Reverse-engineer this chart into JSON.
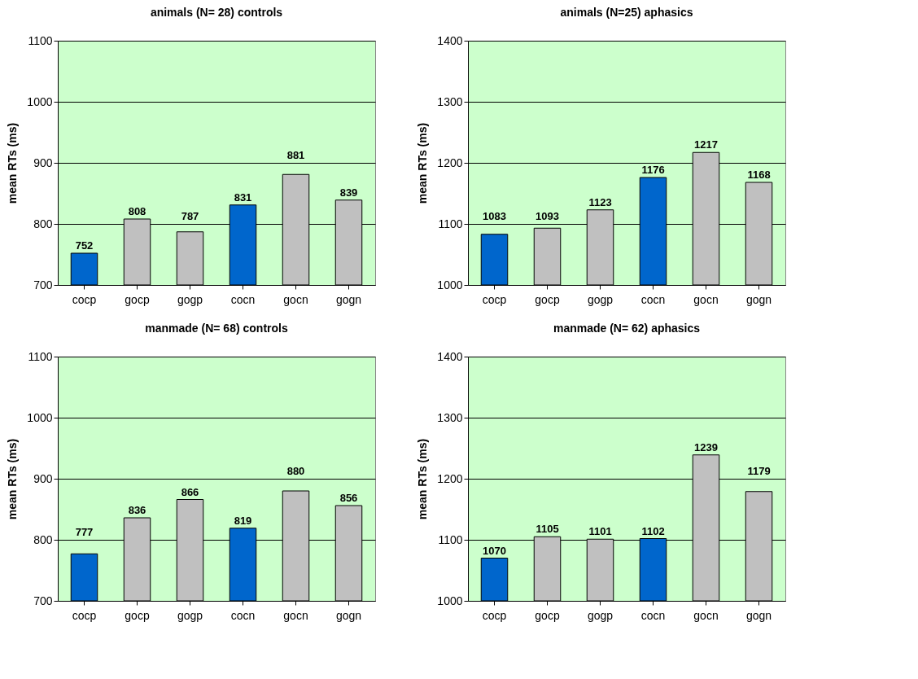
{
  "chart_data": [
    {
      "type": "bar",
      "title": "animals (N= 28) controls",
      "ylabel": "mean RTs (ms)",
      "categories": [
        "cocp",
        "gocp",
        "gogp",
        "cocn",
        "gocn",
        "gogn"
      ],
      "values": [
        752,
        808,
        787,
        831,
        881,
        839
      ],
      "colors": [
        "#0066cc",
        "#c0c0c0",
        "#c0c0c0",
        "#0066cc",
        "#c0c0c0",
        "#c0c0c0"
      ],
      "ylim": [
        700,
        1100
      ],
      "yticks": [
        700,
        800,
        900,
        1000,
        1100
      ],
      "grid": "y",
      "data_labels": true
    },
    {
      "type": "bar",
      "title": "animals (N=25) aphasics",
      "ylabel": "mean RTs (ms)",
      "categories": [
        "cocp",
        "gocp",
        "gogp",
        "cocn",
        "gocn",
        "gogn"
      ],
      "values": [
        1083,
        1093,
        1123,
        1176,
        1217,
        1168
      ],
      "colors": [
        "#0066cc",
        "#c0c0c0",
        "#c0c0c0",
        "#0066cc",
        "#c0c0c0",
        "#c0c0c0"
      ],
      "ylim": [
        1000,
        1400
      ],
      "yticks": [
        1000,
        1100,
        1200,
        1300,
        1400
      ],
      "grid": "y",
      "data_labels": true
    },
    {
      "type": "bar",
      "title": "manmade (N= 68) controls",
      "ylabel": "mean RTs (ms)",
      "categories": [
        "cocp",
        "gocp",
        "gogp",
        "cocn",
        "gocn",
        "gogn"
      ],
      "values": [
        777,
        836,
        866,
        819,
        880,
        856
      ],
      "colors": [
        "#0066cc",
        "#c0c0c0",
        "#c0c0c0",
        "#0066cc",
        "#c0c0c0",
        "#c0c0c0"
      ],
      "ylim": [
        700,
        1100
      ],
      "yticks": [
        700,
        800,
        900,
        1000,
        1100
      ],
      "grid": "y",
      "data_labels": true
    },
    {
      "type": "bar",
      "title": "manmade (N= 62) aphasics",
      "ylabel": "mean RTs (ms)",
      "categories": [
        "cocp",
        "gocp",
        "gogp",
        "cocn",
        "gocn",
        "gogn"
      ],
      "values": [
        1070,
        1105,
        1101,
        1102,
        1239,
        1179
      ],
      "colors": [
        "#0066cc",
        "#c0c0c0",
        "#c0c0c0",
        "#0066cc",
        "#c0c0c0",
        "#c0c0c0"
      ],
      "ylim": [
        1000,
        1400
      ],
      "yticks": [
        1000,
        1100,
        1200,
        1300,
        1400
      ],
      "grid": "y",
      "data_labels": true
    }
  ]
}
